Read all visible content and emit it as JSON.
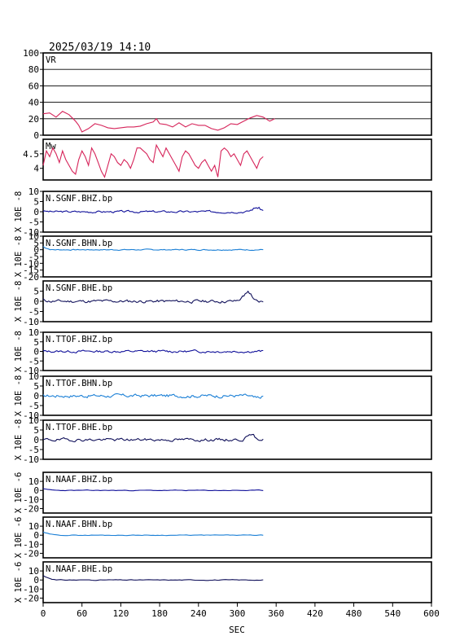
{
  "header": {
    "datetime": "2025/03/19  14:10"
  },
  "chart_data": {
    "type": "line",
    "xlabel": "SEC",
    "xlim": [
      0,
      600
    ],
    "xticks": [
      0,
      60,
      120,
      180,
      240,
      300,
      360,
      420,
      480,
      540,
      600
    ],
    "panels": [
      {
        "name": "VR",
        "label": "VR",
        "ylabel": "",
        "ylim": [
          0,
          100
        ],
        "yticks": [
          0,
          20,
          40,
          60,
          80,
          100
        ],
        "hgrid": true,
        "color": "#d6245a",
        "series_x": [
          0,
          10,
          20,
          30,
          40,
          50,
          55,
          60,
          70,
          80,
          90,
          100,
          110,
          120,
          130,
          140,
          150,
          160,
          170,
          175,
          180,
          190,
          200,
          210,
          220,
          230,
          240,
          250,
          260,
          270,
          280,
          290,
          300,
          310,
          320,
          330,
          340,
          350,
          358
        ],
        "series_y": [
          26,
          27,
          22,
          29,
          25,
          17,
          12,
          4,
          8,
          14,
          12,
          9,
          8,
          9,
          10,
          10,
          11,
          14,
          16,
          20,
          14,
          13,
          10,
          15,
          10,
          14,
          12,
          12,
          8,
          6,
          9,
          14,
          13,
          17,
          21,
          24,
          22,
          17,
          20
        ]
      },
      {
        "name": "Mw",
        "label": "Mw",
        "ylabel": "",
        "ylim": [
          3.6,
          5.0
        ],
        "yticks": [
          4.0,
          4.5
        ],
        "hgrid": false,
        "color": "#d6245a",
        "series_x": [
          0,
          5,
          10,
          15,
          20,
          25,
          30,
          35,
          40,
          45,
          50,
          55,
          60,
          65,
          70,
          75,
          80,
          85,
          90,
          95,
          100,
          105,
          110,
          115,
          120,
          125,
          130,
          135,
          140,
          145,
          150,
          155,
          160,
          165,
          170,
          175,
          180,
          185,
          190,
          195,
          200,
          205,
          210,
          215,
          220,
          225,
          230,
          235,
          240,
          245,
          250,
          255,
          260,
          265,
          270,
          275,
          280,
          285,
          290,
          295,
          300,
          305,
          310,
          315,
          320,
          325,
          330,
          335,
          340
        ],
        "series_y": [
          4.1,
          4.6,
          4.4,
          4.7,
          4.5,
          4.2,
          4.6,
          4.3,
          4.1,
          3.9,
          3.8,
          4.3,
          4.6,
          4.4,
          4.1,
          4.7,
          4.5,
          4.2,
          3.9,
          3.7,
          4.1,
          4.5,
          4.4,
          4.2,
          4.1,
          4.3,
          4.2,
          4.0,
          4.3,
          4.7,
          4.7,
          4.6,
          4.5,
          4.3,
          4.2,
          4.8,
          4.6,
          4.4,
          4.7,
          4.5,
          4.3,
          4.1,
          3.9,
          4.4,
          4.6,
          4.5,
          4.3,
          4.1,
          4.0,
          4.2,
          4.3,
          4.1,
          3.9,
          4.1,
          3.7,
          4.6,
          4.7,
          4.6,
          4.4,
          4.5,
          4.3,
          4.1,
          4.5,
          4.6,
          4.4,
          4.2,
          4.0,
          4.3,
          4.4
        ]
      },
      {
        "name": "N.SGNF.BHZ.bp",
        "label": "N.SGNF.BHZ.bp",
        "ylabel": "X 10E -8",
        "ylim": [
          -10,
          10
        ],
        "yticks": [
          -10,
          -5,
          0,
          5,
          10
        ],
        "color": "#10109a",
        "n": 160,
        "amp": 0.4,
        "seed": 3,
        "bump_at": 330,
        "bump_amp": 2.2,
        "start": 0.2
      },
      {
        "name": "N.SGNF.BHN.bp",
        "label": "N.SGNF.BHN.bp",
        "ylabel": "X 10E -8",
        "ylim": [
          -20,
          10
        ],
        "yticks": [
          -20,
          -15,
          -10,
          -5,
          0,
          5,
          10
        ],
        "color": "#1a7fd6",
        "n": 160,
        "amp": 0.3,
        "seed": 7,
        "bump_at": 0,
        "bump_amp": 0,
        "start": 1.5
      },
      {
        "name": "N.SGNF.BHE.bp",
        "label": "N.SGNF.BHE.bp",
        "ylabel": "X 10E -8",
        "ylim": [
          -10,
          10
        ],
        "yticks": [
          -10,
          -5,
          0,
          5
        ],
        "color": "#10105a",
        "n": 160,
        "amp": 0.6,
        "seed": 11,
        "bump_at": 315,
        "bump_amp": 4.5,
        "start": 0.5
      },
      {
        "name": "N.TTOF.BHZ.bp",
        "label": "N.TTOF.BHZ.bp",
        "ylabel": "X 10E -8",
        "ylim": [
          -10,
          10
        ],
        "yticks": [
          -10,
          -5,
          0,
          5,
          10
        ],
        "color": "#10109a",
        "n": 160,
        "amp": 0.5,
        "seed": 13,
        "bump_at": 0,
        "bump_amp": 0,
        "start": 0
      },
      {
        "name": "N.TTOF.BHN.bp",
        "label": "N.TTOF.BHN.bp",
        "ylabel": "X 10E -8",
        "ylim": [
          -10,
          10
        ],
        "yticks": [
          -10,
          -5,
          0,
          5,
          10
        ],
        "color": "#1a7fd6",
        "n": 160,
        "amp": 0.7,
        "seed": 17,
        "bump_at": 330,
        "bump_amp": -1.5,
        "start": 0
      },
      {
        "name": "N.TTOF.BHE.bp",
        "label": "N.TTOF.BHE.bp",
        "ylabel": "X 10E -8",
        "ylim": [
          -10,
          10
        ],
        "yticks": [
          -10,
          -5,
          0,
          5,
          10
        ],
        "color": "#10105a",
        "n": 160,
        "amp": 0.6,
        "seed": 19,
        "bump_at": 322,
        "bump_amp": 2.6,
        "start": 0
      },
      {
        "name": "N.NAAF.BHZ.bp",
        "label": "N.NAAF.BHZ.bp",
        "ylabel": "X 10E -6",
        "ylim": [
          -25,
          20
        ],
        "yticks": [
          -20,
          -10,
          0,
          10
        ],
        "color": "#10109a",
        "n": 100,
        "amp": 0.3,
        "seed": 23,
        "bump_at": 0,
        "bump_amp": 0,
        "start": 1.0
      },
      {
        "name": "N.NAAF.BHN.bp",
        "label": "N.NAAF.BHN.bp",
        "ylabel": "X 10E -6",
        "ylim": [
          -25,
          20
        ],
        "yticks": [
          -20,
          -10,
          0,
          10
        ],
        "color": "#1a7fd6",
        "n": 100,
        "amp": 0.3,
        "seed": 29,
        "bump_at": 0,
        "bump_amp": 0,
        "start": 2.0
      },
      {
        "name": "N.NAAF.BHE.bp",
        "label": "N.NAAF.BHE.bp",
        "ylabel": "X 10E -6",
        "ylim": [
          -25,
          20
        ],
        "yticks": [
          -20,
          -10,
          0,
          10
        ],
        "color": "#10105a",
        "n": 100,
        "amp": 0.3,
        "seed": 31,
        "bump_at": 0,
        "bump_amp": 0,
        "start": 3.0
      }
    ]
  }
}
